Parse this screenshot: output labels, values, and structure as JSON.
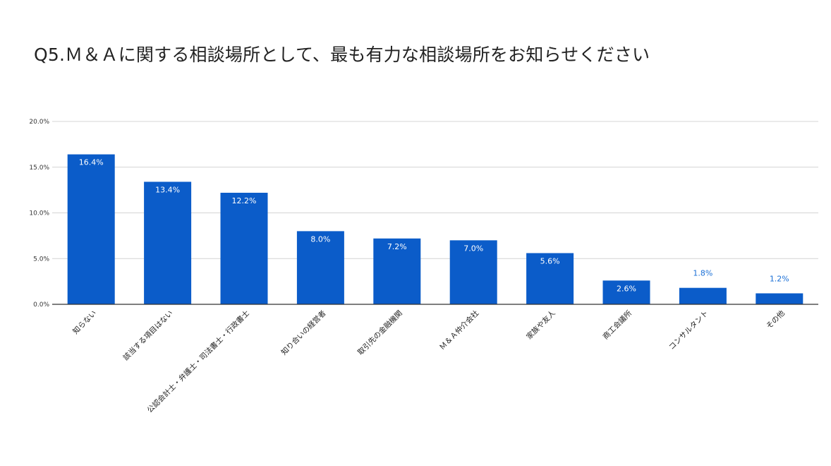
{
  "chart_data": {
    "type": "bar",
    "title": "Q5.Ｍ＆Ａに関する相談場所として、最も有力な相談場所をお知らせください",
    "xlabel": "",
    "ylabel": "",
    "ylim": [
      0,
      20
    ],
    "y_ticks": [
      "0.0%",
      "5.0%",
      "10.0%",
      "15.0%",
      "20.0%"
    ],
    "y_tick_values": [
      0,
      5,
      10,
      15,
      20
    ],
    "grid": true,
    "legend": "none",
    "categories": [
      "知らない",
      "該当する項目はない",
      "公認会計士・弁護士・司法書士・行政書士",
      "知り合いの経営者",
      "取引先の金融機関",
      "Ｍ＆Ａ仲介会社",
      "家族や友人",
      "商工会議所",
      "コンサルタント",
      "その他"
    ],
    "values": [
      16.4,
      13.4,
      12.2,
      8.0,
      7.2,
      7.0,
      5.6,
      2.6,
      1.8,
      1.2
    ],
    "data_labels": [
      "16.4%",
      "13.4%",
      "12.2%",
      "8.0%",
      "7.2%",
      "7.0%",
      "5.6%",
      "2.6%",
      "1.8%",
      "1.2%"
    ],
    "colors": {
      "bar": "#0b5cc9",
      "label_inside": "#ffffff",
      "label_outside": "#1a6fd6",
      "grid": "#d4d4d4",
      "axis": "#333333"
    }
  }
}
